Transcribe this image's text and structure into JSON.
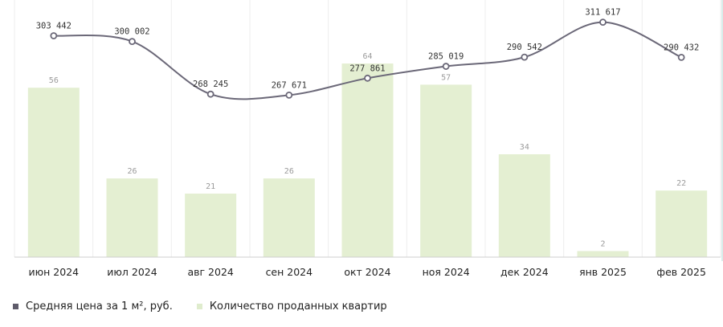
{
  "chart_data": {
    "type": "bar",
    "categories": [
      "июн 2024",
      "июл 2024",
      "авг 2024",
      "сен 2024",
      "окт 2024",
      "ноя 2024",
      "дек 2024",
      "янв 2025",
      "фев 2025"
    ],
    "series": [
      {
        "name": "Средняя цена за 1 м², руб.",
        "type": "line",
        "values": [
          303442,
          300002,
          268245,
          267671,
          277861,
          285019,
          290542,
          311617,
          290432
        ],
        "labels": [
          "303 442",
          "300 002",
          "268 245",
          "267 671",
          "277 861",
          "285 019",
          "290 542",
          "311 617",
          "290 432"
        ],
        "color": "#6b6878"
      },
      {
        "name": "Количество проданных квартир",
        "type": "bar",
        "values": [
          56,
          26,
          21,
          26,
          64,
          57,
          34,
          2,
          22
        ],
        "color": "#e4efd2"
      }
    ],
    "ylim_bars": [
      0,
      85
    ],
    "ylim_price": [
      170000,
      325000
    ],
    "grid": true,
    "legend_position": "bottom-left"
  }
}
